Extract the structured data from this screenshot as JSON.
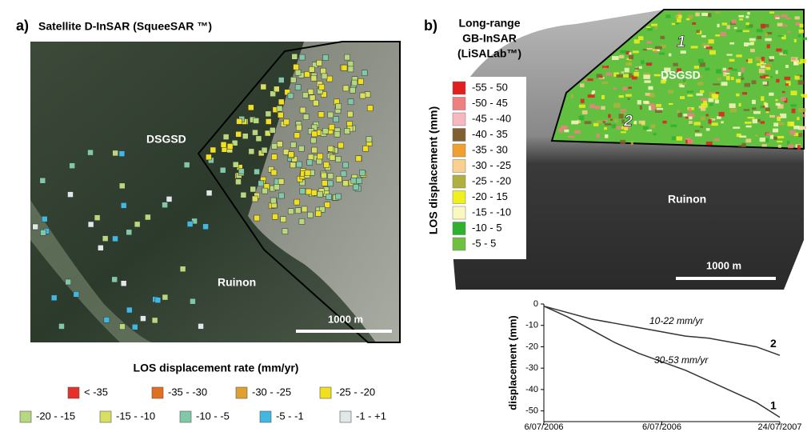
{
  "panel_a": {
    "label": "a)",
    "title": "Satellite D-InSAR  (SqueeSAR ™)",
    "map_labels": [
      "DSGSD",
      "Ruinon"
    ],
    "scale_bar": "1000 m",
    "legend": {
      "title": "LOS displacement rate (mm/yr)",
      "items": [
        {
          "label": "< -35",
          "color": "#e8302a"
        },
        {
          "label": "-35 - -30",
          "color": "#e07020"
        },
        {
          "label": "-30 - -25",
          "color": "#e0a030"
        },
        {
          "label": "-25 - -20",
          "color": "#f0e020"
        },
        {
          "label": "-20 - -15",
          "color": "#b8d880"
        },
        {
          "label": "-15 - -10",
          "color": "#d8e060"
        },
        {
          "label": "-10 - -5",
          "color": "#80c8a8"
        },
        {
          "label": "-5 - -1",
          "color": "#40b8e0"
        },
        {
          "label": "-1 - +1",
          "color": "#e0e8e8"
        }
      ]
    }
  },
  "panel_b": {
    "label": "b)",
    "map_labels": [
      "DSGSD",
      "Ruinon",
      "1",
      "2"
    ],
    "scale_bar": "1000 m",
    "legend": {
      "title": [
        "Long-range",
        "GB-InSAR",
        "(LiSALab™)"
      ],
      "axis_label": "LOS displacement (mm)",
      "items": [
        {
          "label": "-55 - 50",
          "color": "#e02020"
        },
        {
          "label": "-50 - 45",
          "color": "#f08080"
        },
        {
          "label": "-45 - -40",
          "color": "#f8b8c0"
        },
        {
          "label": "-40 - 35",
          "color": "#806030"
        },
        {
          "label": "-35 - 30",
          "color": "#f0a030"
        },
        {
          "label": "-30 - -25",
          "color": "#f8d090"
        },
        {
          "label": "-25 - -20",
          "color": "#b0b040"
        },
        {
          "label": "-20 - 15",
          "color": "#f0f020"
        },
        {
          "label": "-15 - -10",
          "color": "#f8f8c0"
        },
        {
          "label": "-10 - 5",
          "color": "#30b030"
        },
        {
          "label": "-5 - 5",
          "color": "#70c040"
        }
      ]
    }
  },
  "chart_data": {
    "type": "line",
    "ylabel": "displacement (mm)",
    "x": [
      0,
      1,
      2,
      3,
      4,
      5,
      6,
      7,
      8,
      9,
      10
    ],
    "xlim": [
      0,
      10
    ],
    "xticks": [
      {
        "value": 0,
        "label": "6/07/2006"
      },
      {
        "value": 5,
        "label": "6/07/2006"
      },
      {
        "value": 10,
        "label": "24/07/2007"
      }
    ],
    "ylim": [
      -55,
      0
    ],
    "yticks": [
      0,
      -10,
      -20,
      -30,
      -40,
      -50
    ],
    "series": [
      {
        "name": "1",
        "color": "#333333",
        "values": [
          -1,
          -6,
          -12,
          -18,
          -23,
          -27,
          -31,
          -36,
          -41,
          -46,
          -53
        ]
      },
      {
        "name": "2",
        "color": "#333333",
        "values": [
          -1,
          -4,
          -7,
          -9,
          -11,
          -13,
          -15,
          -16,
          -18,
          -20,
          -24
        ]
      }
    ],
    "annotations": [
      "10-22 mm/yr",
      "30-53 mm/yr"
    ]
  }
}
